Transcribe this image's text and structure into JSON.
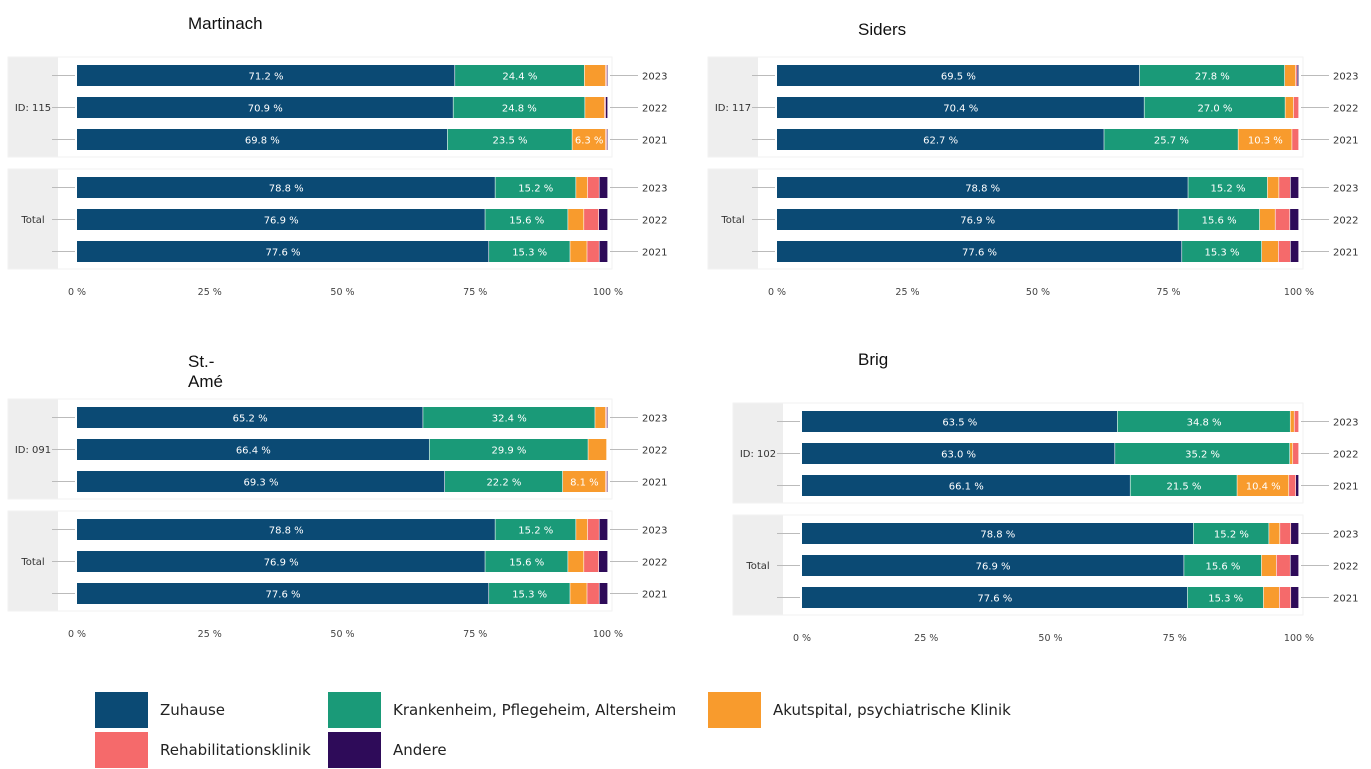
{
  "colors": {
    "zuhause": "#0b4a74",
    "kranken": "#1a9a78",
    "akut": "#f89b2d",
    "reha": "#f56a6b",
    "andere": "#2e0b59"
  },
  "legend": [
    {
      "key": "zuhause",
      "label": "Zuhause"
    },
    {
      "key": "kranken",
      "label": "Krankenheim, Pflegeheim, Altersheim"
    },
    {
      "key": "akut",
      "label": "Akutspital, psychiatrische Klinik"
    },
    {
      "key": "reha",
      "label": "Rehabilitationsklinik"
    },
    {
      "key": "andere",
      "label": "Andere"
    }
  ],
  "chart_data": [
    {
      "type": "bar",
      "title": "Martinach",
      "orientation": "horizontal-stacked",
      "xlim": [
        0,
        100
      ],
      "xticks": [
        "0 %",
        "25 %",
        "50 %",
        "75 %",
        "100 %"
      ],
      "groups": [
        {
          "label": "ID: 115",
          "rows": [
            {
              "year": "2023",
              "values": [
                71.2,
                24.4,
                4.0,
                0.2,
                0.2
              ]
            },
            {
              "year": "2022",
              "values": [
                70.9,
                24.8,
                3.7,
                0.2,
                0.4
              ]
            },
            {
              "year": "2021",
              "values": [
                69.8,
                23.5,
                6.3,
                0.2,
                0.2
              ]
            }
          ]
        },
        {
          "label": "Total",
          "rows": [
            {
              "year": "2023",
              "values": [
                78.8,
                15.2,
                2.2,
                2.2,
                1.6
              ]
            },
            {
              "year": "2022",
              "values": [
                76.9,
                15.6,
                3.0,
                2.8,
                1.7
              ]
            },
            {
              "year": "2021",
              "values": [
                77.6,
                15.3,
                3.2,
                2.3,
                1.6
              ]
            }
          ]
        }
      ]
    },
    {
      "type": "bar",
      "title": "Siders",
      "orientation": "horizontal-stacked",
      "xlim": [
        0,
        100
      ],
      "xticks": [
        "0 %",
        "25 %",
        "50 %",
        "75 %",
        "100 %"
      ],
      "groups": [
        {
          "label": "ID: 117",
          "rows": [
            {
              "year": "2023",
              "values": [
                69.5,
                27.8,
                2.1,
                0.3,
                0.3
              ]
            },
            {
              "year": "2022",
              "values": [
                70.4,
                27.0,
                1.6,
                1.0,
                0.0
              ]
            },
            {
              "year": "2021",
              "values": [
                62.7,
                25.7,
                10.3,
                1.3,
                0.0
              ]
            }
          ]
        },
        {
          "label": "Total",
          "rows": [
            {
              "year": "2023",
              "values": [
                78.8,
                15.2,
                2.2,
                2.2,
                1.6
              ]
            },
            {
              "year": "2022",
              "values": [
                76.9,
                15.6,
                3.0,
                2.8,
                1.7
              ]
            },
            {
              "year": "2021",
              "values": [
                77.6,
                15.3,
                3.2,
                2.3,
                1.6
              ]
            }
          ]
        }
      ]
    },
    {
      "type": "bar",
      "title": "St.-Amé",
      "orientation": "horizontal-stacked",
      "xlim": [
        0,
        100
      ],
      "xticks": [
        "0 %",
        "25 %",
        "50 %",
        "75 %",
        "100 %"
      ],
      "groups": [
        {
          "label": "ID: 091",
          "rows": [
            {
              "year": "2023",
              "values": [
                65.2,
                32.4,
                2.0,
                0.2,
                0.2
              ]
            },
            {
              "year": "2022",
              "values": [
                66.4,
                29.9,
                3.5,
                0.1,
                0.1
              ]
            },
            {
              "year": "2021",
              "values": [
                69.3,
                22.2,
                8.1,
                0.2,
                0.2
              ]
            }
          ]
        },
        {
          "label": "Total",
          "rows": [
            {
              "year": "2023",
              "values": [
                78.8,
                15.2,
                2.2,
                2.2,
                1.6
              ]
            },
            {
              "year": "2022",
              "values": [
                76.9,
                15.6,
                3.0,
                2.8,
                1.7
              ]
            },
            {
              "year": "2021",
              "values": [
                77.6,
                15.3,
                3.2,
                2.3,
                1.6
              ]
            }
          ]
        }
      ]
    },
    {
      "type": "bar",
      "title": "Brig",
      "orientation": "horizontal-stacked",
      "xlim": [
        0,
        100
      ],
      "xticks": [
        "0 %",
        "25 %",
        "50 %",
        "75 %",
        "100 %"
      ],
      "groups": [
        {
          "label": "ID: 102",
          "rows": [
            {
              "year": "2023",
              "values": [
                63.5,
                34.8,
                0.8,
                0.9,
                0.0
              ]
            },
            {
              "year": "2022",
              "values": [
                63.0,
                35.2,
                0.6,
                1.2,
                0.0
              ]
            },
            {
              "year": "2021",
              "values": [
                66.1,
                21.5,
                10.4,
                1.4,
                0.6
              ]
            }
          ]
        },
        {
          "label": "Total",
          "rows": [
            {
              "year": "2023",
              "values": [
                78.8,
                15.2,
                2.2,
                2.2,
                1.6
              ]
            },
            {
              "year": "2022",
              "values": [
                76.9,
                15.6,
                3.0,
                2.8,
                1.7
              ]
            },
            {
              "year": "2021",
              "values": [
                77.6,
                15.3,
                3.2,
                2.3,
                1.6
              ]
            }
          ]
        }
      ]
    }
  ]
}
